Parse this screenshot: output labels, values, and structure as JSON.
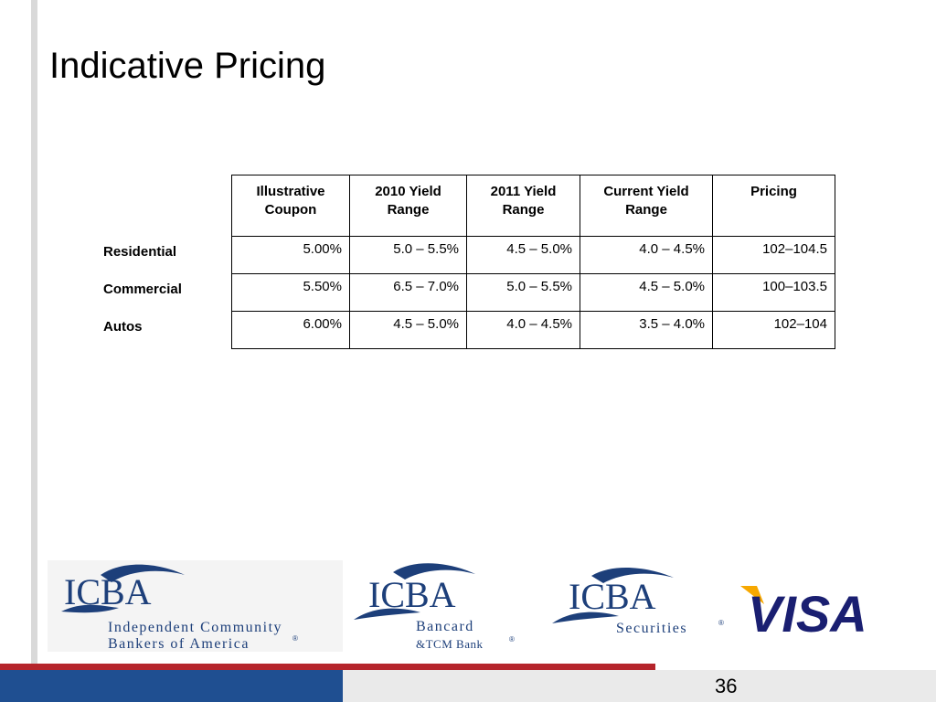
{
  "slide": {
    "title": "Indicative Pricing",
    "page_number": "36"
  },
  "table": {
    "headers": [
      [
        "Illustrative",
        "Coupon"
      ],
      [
        "2010 Yield",
        "Range"
      ],
      [
        "2011 Yield",
        "Range"
      ],
      [
        "Current Yield",
        "Range"
      ],
      [
        "Pricing",
        ""
      ]
    ],
    "rows": [
      {
        "label": "Residential",
        "cells": [
          "5.00%",
          "5.0 – 5.5%",
          "4.5 – 5.0%",
          "4.0 – 4.5%",
          "102–104.5"
        ]
      },
      {
        "label": "Commercial",
        "cells": [
          "5.50%",
          "6.5 – 7.0%",
          "5.0 – 5.5%",
          "4.5 – 5.0%",
          "100–103.5"
        ]
      },
      {
        "label": "Autos",
        "cells": [
          "6.00%",
          "4.5 – 5.0%",
          "4.0 – 4.5%",
          "3.5 – 4.0%",
          "102–104"
        ]
      }
    ]
  },
  "logos": {
    "icba": {
      "mark": "ICBA",
      "line1": "Independent Community",
      "line2": "Bankers of America",
      "registered": "®"
    },
    "bancard": {
      "mark": "ICBA",
      "line1": "Bancard",
      "line2": "&TCM Bank",
      "registered": "®"
    },
    "securities": {
      "mark": "ICBA",
      "line1": "Securities",
      "registered": "®"
    },
    "visa": {
      "mark": "VISA"
    }
  },
  "colors": {
    "footer_blue": "#1f4f91",
    "footer_red": "#b5242b",
    "logo_navy": "#1d3f7a",
    "visa_blue": "#1a1f71",
    "visa_gold": "#f7a800"
  }
}
